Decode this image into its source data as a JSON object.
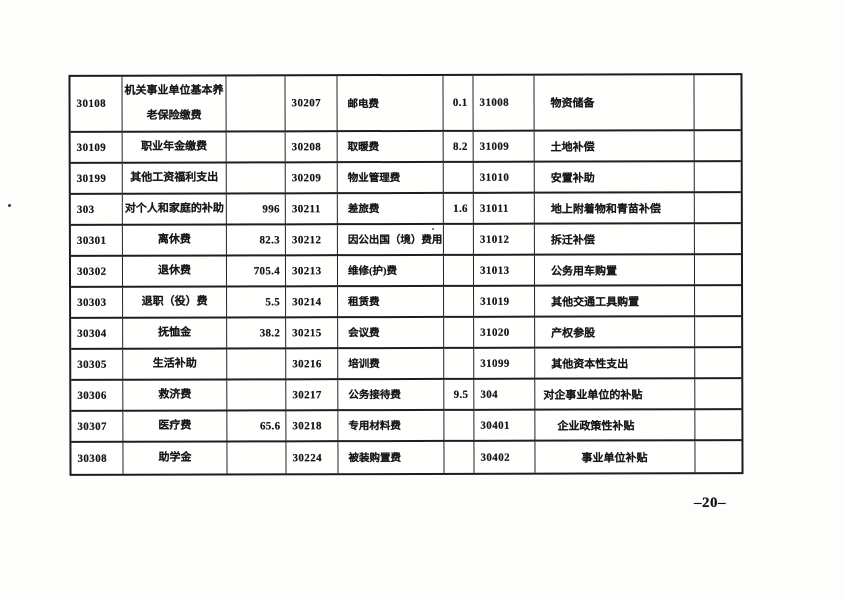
{
  "page": {
    "number_label": "–20–"
  },
  "table": {
    "column_types": [
      "code",
      "label1",
      "value",
      "code",
      "label2",
      "value",
      "code",
      "label3",
      "value"
    ],
    "rows": [
      {
        "cells": [
          "30108",
          "机关事业单位基本养老保险缴费",
          "",
          "30207",
          "邮电费",
          "0.1",
          "31008",
          "物资储备",
          ""
        ]
      },
      {
        "cells": [
          "30109",
          "职业年金缴费",
          "",
          "30208",
          "取暖费",
          "8.2",
          "31009",
          "土地补偿",
          ""
        ]
      },
      {
        "cells": [
          "30199",
          "其他工资福利支出",
          "",
          "30209",
          "物业管理费",
          "",
          "31010",
          "安置补助",
          ""
        ]
      },
      {
        "cells": [
          "303",
          "对个人和家庭的补助",
          "996",
          "30211",
          "差旅费",
          "1.6",
          "31011",
          "地上附着物和青苗补偿",
          ""
        ]
      },
      {
        "cells": [
          "30301",
          "离休费",
          "82.3",
          "30212",
          "因公出国（境）费用",
          "",
          "31012",
          "拆迁补偿",
          ""
        ]
      },
      {
        "cells": [
          "30302",
          "退休费",
          "705.4",
          "30213",
          "维修(护)费",
          "",
          "31013",
          "公务用车购置",
          ""
        ]
      },
      {
        "cells": [
          "30303",
          "退职（役）费",
          "5.5",
          "30214",
          "租赁费",
          "",
          "31019",
          "其他交通工具购置",
          ""
        ]
      },
      {
        "cells": [
          "30304",
          "抚恤金",
          "38.2",
          "30215",
          "会议费",
          "",
          "31020",
          "产权参股",
          ""
        ]
      },
      {
        "cells": [
          "30305",
          "生活补助",
          "",
          "30216",
          "培训费",
          "",
          "31099",
          "其他资本性支出",
          ""
        ]
      },
      {
        "cells": [
          "30306",
          "救济费",
          "",
          "30217",
          "公务接待费",
          "9.5",
          "304",
          "对企事业单位的补贴",
          ""
        ],
        "pads": {
          "7": 8
        }
      },
      {
        "cells": [
          "30307",
          "医疗费",
          "65.6",
          "30218",
          "专用材料费",
          "",
          "30401",
          "企业政策性补贴",
          ""
        ],
        "pads": {
          "7": 22
        }
      },
      {
        "cells": [
          "30308",
          "助学金",
          "",
          "30224",
          "被装购置费",
          "",
          "30402",
          "事业单位补贴",
          ""
        ],
        "pads": {
          "7": 46
        }
      }
    ]
  }
}
